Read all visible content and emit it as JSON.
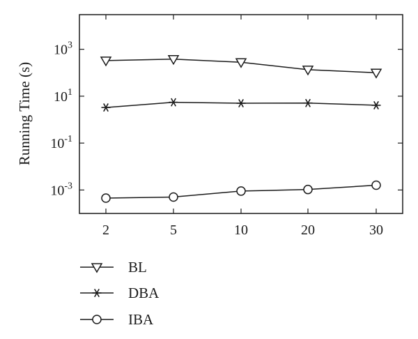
{
  "chart_data": {
    "type": "line",
    "title": "",
    "xlabel": "",
    "ylabel": "Running Time (s)",
    "y_scale": "log",
    "ylim": [
      0.0001,
      30000
    ],
    "x_ticks": [
      "2",
      "5",
      "10",
      "20",
      "30"
    ],
    "y_ticks": [
      {
        "value": 0.001,
        "base": "10",
        "exp": "-3"
      },
      {
        "value": 0.1,
        "base": "10",
        "exp": "-1"
      },
      {
        "value": 10,
        "base": "10",
        "exp": "1"
      },
      {
        "value": 1000,
        "base": "10",
        "exp": "3"
      }
    ],
    "grid": false,
    "legend_position": "bottom-left",
    "categories": [
      "2",
      "5",
      "10",
      "20",
      "30"
    ],
    "series": [
      {
        "name": "BL",
        "marker": "triangle-down",
        "values": [
          330,
          380,
          280,
          135,
          100
        ]
      },
      {
        "name": "DBA",
        "marker": "asterisk",
        "values": [
          3.3,
          5.5,
          5.0,
          5.1,
          4.1
        ]
      },
      {
        "name": "IBA",
        "marker": "circle",
        "values": [
          0.00045,
          0.0005,
          0.0009,
          0.00105,
          0.0016
        ]
      }
    ],
    "colors": {
      "line": "#1a1a1a",
      "background": "#ffffff"
    }
  }
}
